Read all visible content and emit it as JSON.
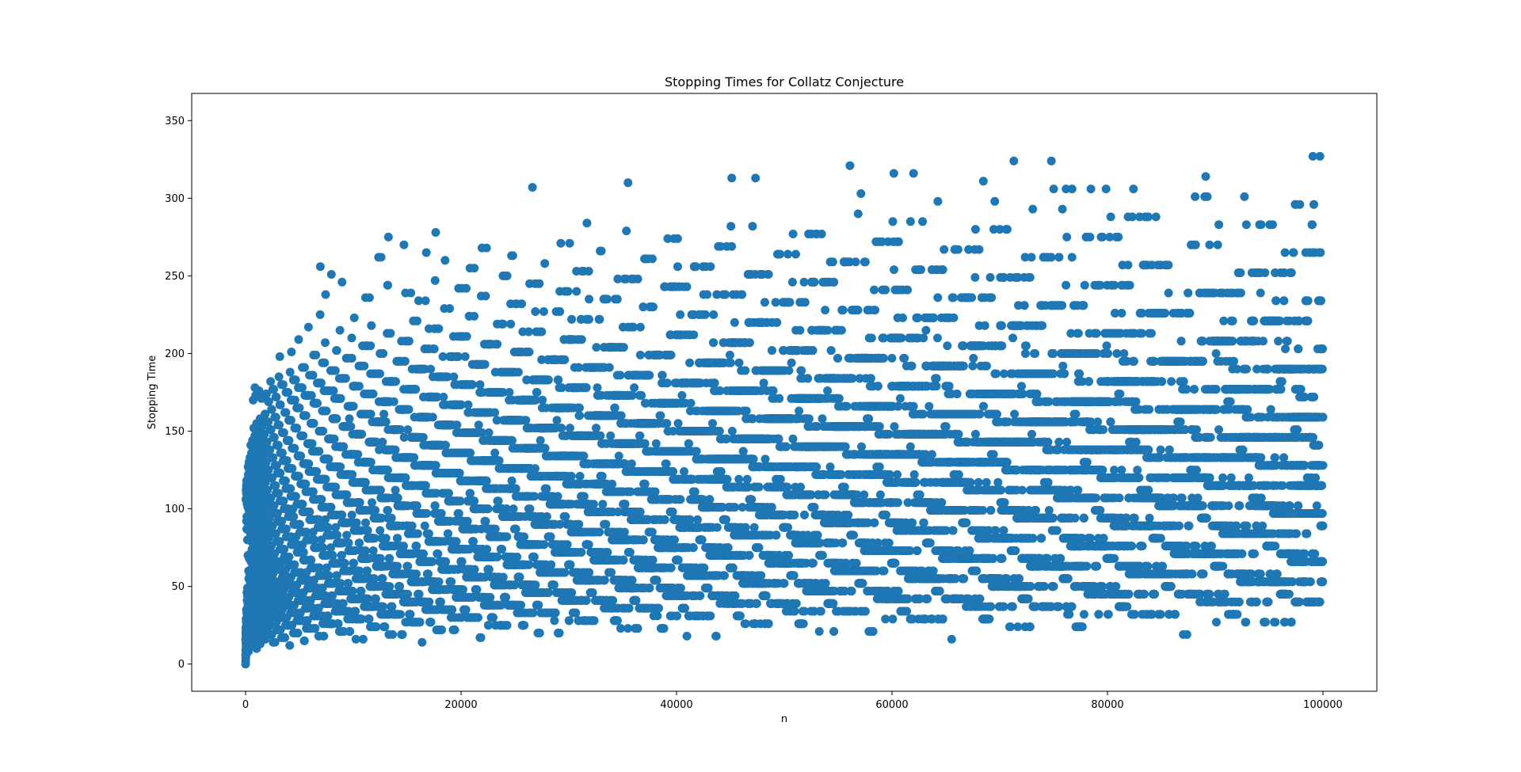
{
  "chart_data": {
    "type": "scatter",
    "title": "Stopping Times for Collatz Conjecture",
    "xlabel": "n",
    "ylabel": "Stopping Time",
    "xlim": [
      -5000,
      105000
    ],
    "ylim": [
      -17.5,
      367.5
    ],
    "x_ticks": [
      0,
      20000,
      40000,
      60000,
      80000,
      100000
    ],
    "y_ticks": [
      0,
      50,
      100,
      150,
      200,
      250,
      300,
      350
    ],
    "x_tick_labels": [
      "0",
      "20000",
      "40000",
      "60000",
      "80000",
      "100000"
    ],
    "y_tick_labels": [
      "0",
      "50",
      "100",
      "150",
      "200",
      "250",
      "300",
      "350"
    ],
    "grid": false,
    "legend": "none",
    "series_color": "#1f77b4",
    "n_start": 1,
    "n_end": 100000,
    "n_step": 3,
    "series": [
      {
        "x": "n = 1 … 100000",
        "y": "number of Collatz steps for n to reach 1"
      }
    ]
  }
}
